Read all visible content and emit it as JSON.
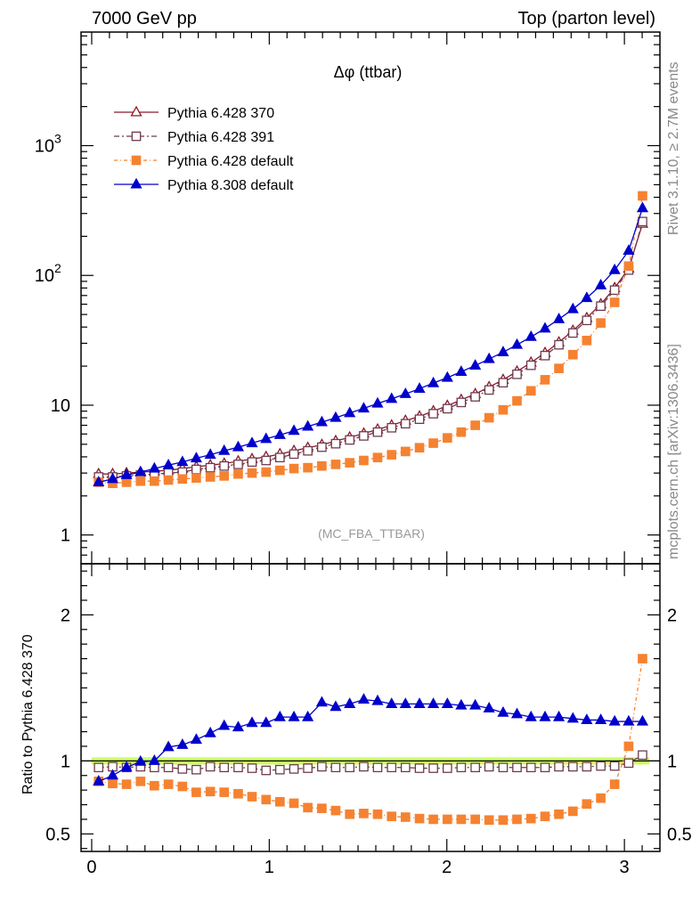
{
  "header": {
    "left": "7000 GeV pp",
    "right": "Top (parton level)"
  },
  "side_labels": {
    "rivet": "Rivet 3.1.10, ≥ 2.7M events",
    "mcplots": "mcplots.cern.ch [arXiv:1306.3436]"
  },
  "colors": {
    "p370": "#8b1a2b",
    "p391": "#6e3b4f",
    "pdef": "#f58231",
    "p8": "#0000cc",
    "band": "#ccff66"
  },
  "chart_data": [
    {
      "type": "line",
      "title": "Δφ (ttbar)",
      "annotation": "(MC_FBA_TTBAR)",
      "xlabel": "",
      "ylabel": "",
      "y_scale": "log",
      "xlim": [
        -0.06,
        3.2
      ],
      "ylim": [
        0.6,
        7500
      ],
      "x_ticks": [
        "0",
        "1",
        "2",
        "3"
      ],
      "y_ticks": [
        "1",
        "10",
        "10^2",
        "10^3"
      ],
      "legend_position": "top-left",
      "x": [
        0.039,
        0.118,
        0.196,
        0.275,
        0.353,
        0.432,
        0.511,
        0.589,
        0.668,
        0.746,
        0.825,
        0.903,
        0.982,
        1.06,
        1.139,
        1.217,
        1.296,
        1.374,
        1.453,
        1.532,
        1.61,
        1.689,
        1.767,
        1.846,
        1.924,
        2.003,
        2.081,
        2.16,
        2.238,
        2.317,
        2.395,
        2.474,
        2.553,
        2.631,
        2.71,
        2.788,
        2.867,
        2.945,
        3.024,
        3.102
      ],
      "series": [
        {
          "name": "Pythia 6.428 370",
          "values": [
            2.95,
            2.95,
            3.0,
            3.05,
            3.1,
            3.15,
            3.25,
            3.35,
            3.45,
            3.55,
            3.7,
            3.85,
            4.0,
            4.2,
            4.45,
            4.7,
            4.95,
            5.3,
            5.65,
            6.05,
            6.5,
            7.0,
            7.6,
            8.2,
            9.0,
            9.9,
            11.0,
            12.2,
            13.8,
            15.7,
            18.2,
            21.3,
            25.3,
            30.5,
            37.5,
            47,
            60,
            80,
            113,
            250
          ]
        },
        {
          "name": "Pythia 6.428 391",
          "values": [
            2.8,
            2.8,
            2.85,
            2.9,
            2.95,
            3.0,
            3.05,
            3.2,
            3.3,
            3.4,
            3.5,
            3.65,
            3.75,
            3.95,
            4.2,
            4.45,
            4.75,
            5.05,
            5.4,
            5.8,
            6.2,
            6.7,
            7.2,
            7.8,
            8.6,
            9.4,
            10.5,
            11.6,
            13.1,
            14.9,
            17.3,
            20.3,
            24.1,
            29.2,
            36,
            45,
            58,
            77,
            110,
            260
          ]
        },
        {
          "name": "Pythia 6.428 default",
          "values": [
            2.55,
            2.5,
            2.55,
            2.6,
            2.6,
            2.65,
            2.7,
            2.75,
            2.8,
            2.85,
            2.95,
            3.0,
            3.05,
            3.15,
            3.25,
            3.3,
            3.4,
            3.5,
            3.6,
            3.75,
            3.95,
            4.15,
            4.4,
            4.7,
            5.1,
            5.6,
            6.2,
            7.0,
            8.0,
            9.2,
            10.8,
            12.9,
            15.7,
            19.2,
            24.5,
            31.5,
            43,
            62,
            118,
            410
          ]
        },
        {
          "name": "Pythia 8.308 default",
          "values": [
            2.55,
            2.7,
            2.9,
            3.05,
            3.25,
            3.45,
            3.65,
            3.9,
            4.15,
            4.45,
            4.75,
            5.1,
            5.5,
            5.9,
            6.35,
            6.85,
            7.4,
            8.0,
            8.7,
            9.45,
            10.3,
            11.2,
            12.2,
            13.4,
            14.8,
            16.3,
            18.1,
            20.2,
            22.7,
            25.6,
            29.2,
            33.6,
            39,
            46,
            55,
            67,
            84,
            110,
            155,
            330
          ]
        }
      ]
    },
    {
      "type": "line",
      "title": "",
      "xlabel": "",
      "ylabel": "Ratio to Pythia 6.428 370",
      "ylim": [
        0.38,
        2.35
      ],
      "xlim": [
        -0.06,
        3.2
      ],
      "x_ticks": [
        "0",
        "1",
        "2",
        "3"
      ],
      "y_ticks": [
        "0.5",
        "1",
        "2"
      ],
      "reference_line": 1.0,
      "band": [
        0.975,
        1.025
      ],
      "x": [
        0.039,
        0.118,
        0.196,
        0.275,
        0.353,
        0.432,
        0.511,
        0.589,
        0.668,
        0.746,
        0.825,
        0.903,
        0.982,
        1.06,
        1.139,
        1.217,
        1.296,
        1.374,
        1.453,
        1.532,
        1.61,
        1.689,
        1.767,
        1.846,
        1.924,
        2.003,
        2.081,
        2.16,
        2.238,
        2.317,
        2.395,
        2.474,
        2.553,
        2.631,
        2.71,
        2.788,
        2.867,
        2.945,
        3.024,
        3.102
      ],
      "series": [
        {
          "name": "Pythia 6.428 391",
          "values": [
            0.955,
            0.96,
            0.955,
            0.96,
            0.955,
            0.955,
            0.945,
            0.94,
            0.96,
            0.955,
            0.955,
            0.95,
            0.935,
            0.94,
            0.945,
            0.95,
            0.96,
            0.955,
            0.955,
            0.96,
            0.955,
            0.955,
            0.955,
            0.95,
            0.95,
            0.95,
            0.955,
            0.955,
            0.96,
            0.955,
            0.955,
            0.955,
            0.955,
            0.96,
            0.96,
            0.96,
            0.965,
            0.965,
            0.985,
            1.04
          ]
        },
        {
          "name": "Pythia 6.428 default",
          "values": [
            0.86,
            0.845,
            0.84,
            0.86,
            0.83,
            0.84,
            0.825,
            0.785,
            0.79,
            0.785,
            0.775,
            0.755,
            0.735,
            0.72,
            0.71,
            0.68,
            0.675,
            0.66,
            0.635,
            0.64,
            0.635,
            0.62,
            0.615,
            0.605,
            0.6,
            0.6,
            0.6,
            0.6,
            0.595,
            0.595,
            0.6,
            0.605,
            0.62,
            0.635,
            0.655,
            0.705,
            0.745,
            0.84,
            1.1,
            1.7
          ]
        },
        {
          "name": "Pythia 8.308 default",
          "values": [
            0.86,
            0.9,
            0.955,
            0.995,
            1.0,
            1.095,
            1.11,
            1.145,
            1.19,
            1.24,
            1.23,
            1.26,
            1.26,
            1.3,
            1.3,
            1.3,
            1.4,
            1.37,
            1.39,
            1.42,
            1.41,
            1.39,
            1.39,
            1.39,
            1.39,
            1.39,
            1.38,
            1.38,
            1.36,
            1.33,
            1.32,
            1.3,
            1.3,
            1.3,
            1.29,
            1.28,
            1.28,
            1.27,
            1.27,
            1.27
          ]
        }
      ]
    }
  ]
}
